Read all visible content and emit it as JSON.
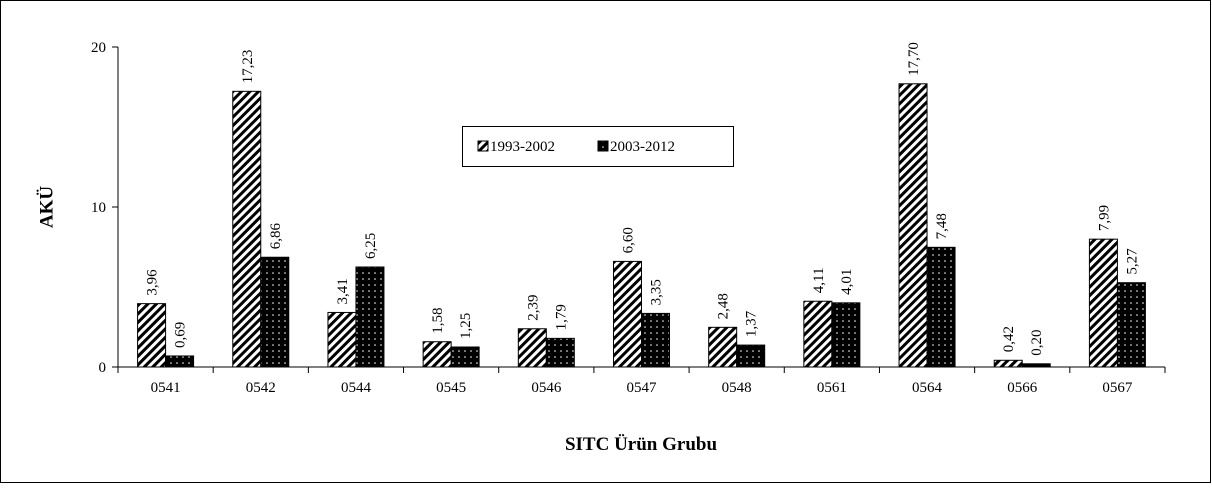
{
  "chart_data": {
    "type": "bar",
    "xlabel": "SITC Ürün Grubu",
    "ylabel": "AKÜ",
    "categories": [
      "0541",
      "0542",
      "0544",
      "0545",
      "0546",
      "0547",
      "0548",
      "0561",
      "0564",
      "0566",
      "0567"
    ],
    "series": [
      {
        "name": "1993-2002",
        "color": "#000000",
        "pattern": "diagonal",
        "values": [
          3.96,
          17.23,
          3.41,
          1.58,
          2.39,
          6.6,
          2.48,
          4.11,
          17.7,
          0.42,
          7.99
        ],
        "value_labels": [
          "3,96",
          "17,23",
          "3,41",
          "1,58",
          "2,39",
          "6,60",
          "2,48",
          "4,11",
          "17,70",
          "0,42",
          "7,99"
        ]
      },
      {
        "name": "2003-2012",
        "color": "#000000",
        "pattern": "dots",
        "values": [
          0.69,
          6.86,
          6.25,
          1.25,
          1.79,
          3.35,
          1.37,
          4.01,
          7.48,
          0.2,
          5.27
        ],
        "value_labels": [
          "0,69",
          "6,86",
          "6,25",
          "1,25",
          "1,79",
          "3,35",
          "1,37",
          "4,01",
          "7,48",
          "0,20",
          "5,27"
        ]
      }
    ],
    "ylim": [
      0,
      20
    ],
    "yticks": [
      0,
      10,
      20
    ],
    "grid": false,
    "legend": "top"
  }
}
